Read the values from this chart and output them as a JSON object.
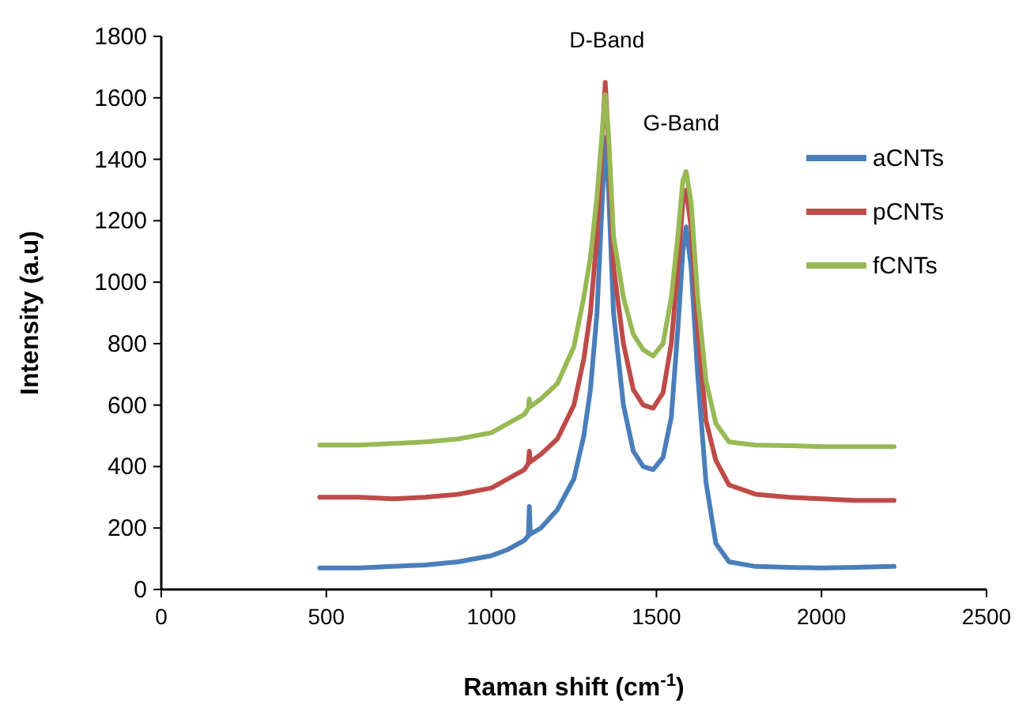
{
  "chart_data": {
    "type": "line",
    "xlabel": "Raman shift (cm$^{-1}$)",
    "ylabel": "Intensity (a.u)",
    "x": [
      480,
      600,
      700,
      800,
      900,
      1000,
      1050,
      1100,
      1112,
      1115,
      1118,
      1150,
      1200,
      1250,
      1280,
      1300,
      1320,
      1335,
      1345,
      1355,
      1370,
      1400,
      1430,
      1460,
      1490,
      1520,
      1545,
      1565,
      1580,
      1590,
      1605,
      1625,
      1650,
      1680,
      1720,
      1800,
      1900,
      2000,
      2100,
      2220
    ],
    "series": [
      {
        "name": "aCNTs",
        "color": "#4a7ebb",
        "values": [
          70,
          70,
          75,
          80,
          90,
          110,
          130,
          160,
          175,
          270,
          180,
          200,
          260,
          360,
          500,
          650,
          900,
          1250,
          1470,
          1300,
          900,
          600,
          450,
          400,
          390,
          430,
          560,
          850,
          1100,
          1180,
          1050,
          700,
          350,
          150,
          90,
          75,
          72,
          70,
          72,
          75
        ]
      },
      {
        "name": "pCNTs",
        "color": "#be4b48",
        "values": [
          300,
          300,
          295,
          300,
          310,
          330,
          360,
          390,
          410,
          450,
          415,
          440,
          490,
          600,
          750,
          900,
          1150,
          1450,
          1650,
          1450,
          1050,
          800,
          650,
          600,
          590,
          640,
          800,
          1050,
          1260,
          1300,
          1180,
          850,
          550,
          420,
          340,
          310,
          300,
          295,
          290,
          290
        ]
      },
      {
        "name": "fCNTs",
        "color": "#98b954",
        "values": [
          470,
          470,
          475,
          480,
          490,
          510,
          540,
          570,
          590,
          620,
          595,
          620,
          670,
          790,
          950,
          1080,
          1280,
          1480,
          1610,
          1480,
          1150,
          950,
          830,
          780,
          760,
          800,
          950,
          1150,
          1330,
          1360,
          1260,
          950,
          680,
          540,
          480,
          470,
          468,
          465,
          465,
          465
        ]
      }
    ],
    "xlim": [
      0,
      2500
    ],
    "xticks": [
      0,
      500,
      1000,
      1500,
      2000,
      2500
    ],
    "ylim": [
      0,
      1800
    ],
    "yticks": [
      0,
      200,
      400,
      600,
      800,
      1000,
      1200,
      1400,
      1600,
      1800
    ],
    "grid": false,
    "legend": "top right",
    "marker": "none",
    "line_style": "solid",
    "annotations": [
      "D-Band",
      "G-Band"
    ]
  }
}
